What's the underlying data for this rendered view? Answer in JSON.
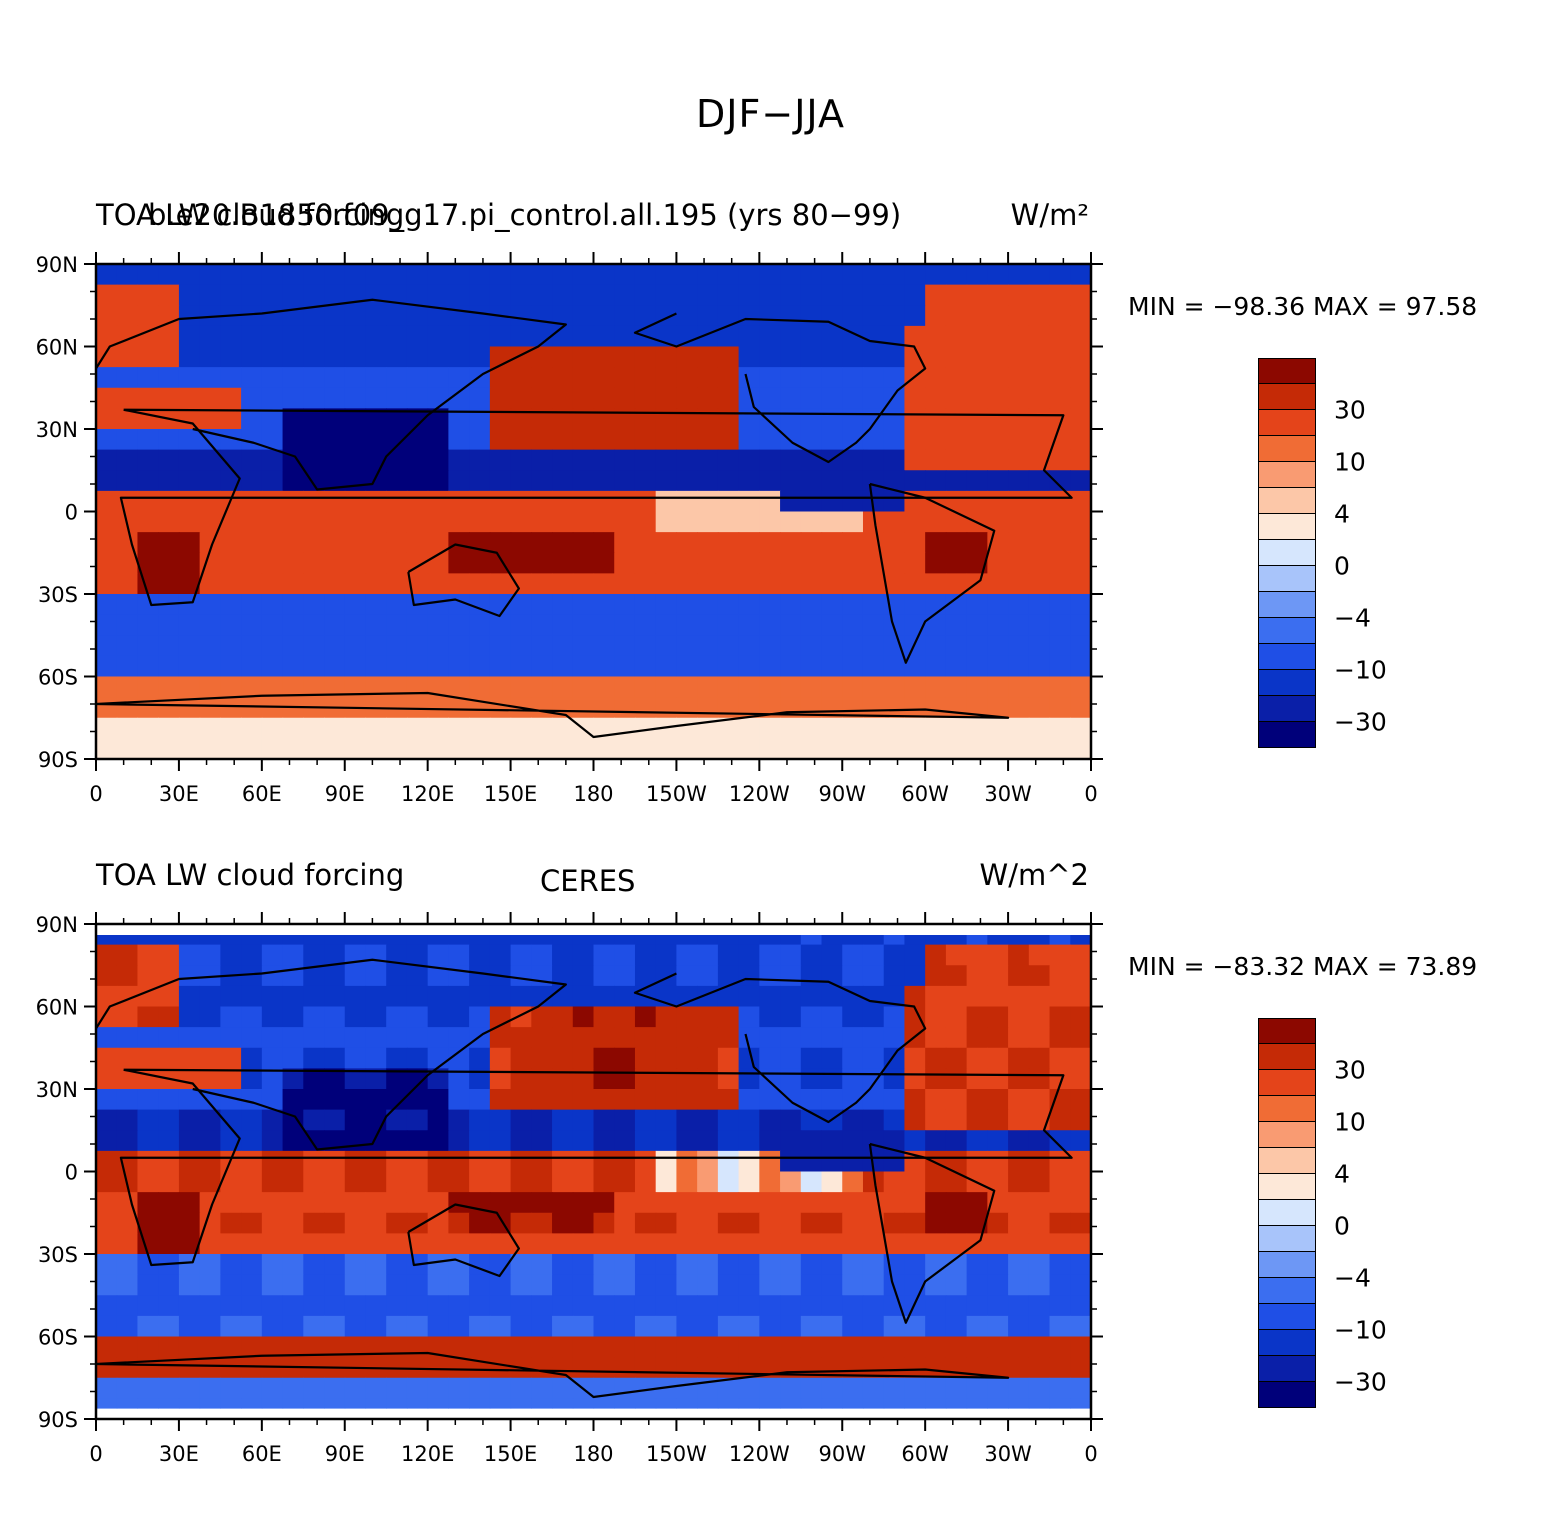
{
  "title": "DJF−JJA",
  "colors": {
    "scale": [
      "#00007a",
      "#0a1fa8",
      "#0a35c8",
      "#1f4fe6",
      "#3b6ef0",
      "#6d97f5",
      "#a8c4fa",
      "#d6e6fd",
      "#fde8d8",
      "#fcc7a8",
      "#f99b72",
      "#f06c35",
      "#e4441a",
      "#c52a06",
      "#8c0800"
    ],
    "coastline": "#000000"
  },
  "axes": {
    "lat_ticks": [
      "90N",
      "60N",
      "30N",
      "0",
      "30S",
      "60S",
      "90S"
    ],
    "lon_ticks": [
      "0",
      "30E",
      "60E",
      "90E",
      "120E",
      "150E",
      "180",
      "150W",
      "120W",
      "90W",
      "60W",
      "30W",
      "0"
    ]
  },
  "colorbar_labels": [
    "30",
    "10",
    "4",
    "0",
    "−4",
    "−10",
    "−30"
  ],
  "panels": [
    {
      "left_label": "TOA LW cloud forcing",
      "overlay_label": "b.e20.B1850.f09_g17.pi_control.all.195 (yrs 80−99)",
      "center_label": "",
      "units": "W/m²",
      "min_text": "MIN = −98.36",
      "max_text": "MAX =   97.58"
    },
    {
      "left_label": "TOA LW cloud forcing",
      "overlay_label": "",
      "center_label": "CERES",
      "units": "W/m^2",
      "min_text": "MIN = −83.32",
      "max_text": "MAX =   73.89"
    }
  ],
  "chart_data": [
    {
      "type": "heatmap",
      "title": "DJF−JJA",
      "subtitle": "b.e20.B1850.f09_g17.pi_control.all.195 (yrs 80−99)",
      "variable": "TOA LW cloud forcing",
      "units": "W/m²",
      "min": -98.36,
      "max": 97.58,
      "xlim": [
        0,
        360
      ],
      "ylim": [
        -90,
        90
      ],
      "projection": "cylindrical equidistant",
      "contour_levels": [
        -40,
        -30,
        -20,
        -10,
        -6,
        -4,
        -2,
        0,
        2,
        4,
        6,
        10,
        20,
        30,
        40
      ]
    },
    {
      "type": "heatmap",
      "title": "DJF−JJA",
      "subtitle": "CERES",
      "variable": "TOA LW cloud forcing",
      "units": "W/m^2",
      "min": -83.32,
      "max": 73.89,
      "xlim": [
        0,
        360
      ],
      "ylim": [
        -90,
        90
      ],
      "projection": "cylindrical equidistant",
      "contour_levels": [
        -40,
        -30,
        -20,
        -10,
        -6,
        -4,
        -2,
        0,
        2,
        4,
        6,
        10,
        20,
        30,
        40
      ]
    }
  ]
}
